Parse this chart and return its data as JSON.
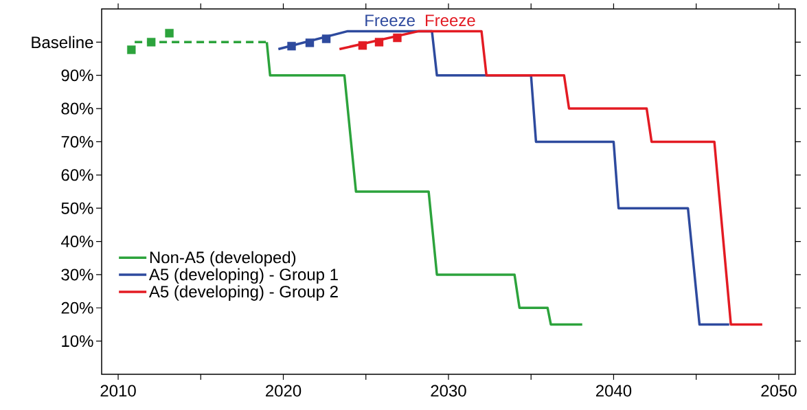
{
  "chart_data": {
    "type": "line",
    "xlim": [
      2009,
      2051
    ],
    "ylim": [
      0,
      110
    ],
    "xticks": [
      2010,
      {
        "value": 2015,
        "label": null
      },
      2020,
      {
        "value": 2025,
        "label": null
      },
      2030,
      {
        "value": 2035,
        "label": null
      },
      2040,
      {
        "value": 2045,
        "label": null
      },
      2050
    ],
    "yticks": [
      {
        "value": 10,
        "label": "10%"
      },
      {
        "value": 20,
        "label": "20%"
      },
      {
        "value": 30,
        "label": "30%"
      },
      {
        "value": 40,
        "label": "40%"
      },
      {
        "value": 50,
        "label": "50%"
      },
      {
        "value": 60,
        "label": "60%"
      },
      {
        "value": 70,
        "label": "70%"
      },
      {
        "value": 80,
        "label": "80%"
      },
      {
        "value": 90,
        "label": "90%"
      },
      {
        "value": 100,
        "label": "Baseline"
      }
    ],
    "grid": false,
    "legend": "bottom left",
    "line_style": "solid",
    "marker": "none",
    "series": [
      {
        "name": "Non-A5 (developed)",
        "color": "#2ca33c",
        "x": [
          2019,
          2019.2,
          2023.7,
          2024.4,
          2028.8,
          2029.3,
          2034,
          2034.3,
          2036,
          2036.2,
          2038.1
        ],
        "values": [
          100,
          90,
          90,
          55,
          55,
          30,
          30,
          20,
          20,
          15,
          15
        ]
      },
      {
        "name": "A5 (developing) - Group 1",
        "color": "#2e4a9e",
        "x": [
          2019.7,
          2023.9,
          2029,
          2029.3,
          2035,
          2035.3,
          2040,
          2040.3,
          2044.5,
          2045.2,
          2047
        ],
        "values": [
          97.9,
          103.3,
          103.3,
          90,
          90,
          70,
          70,
          50,
          50,
          15,
          15
        ]
      },
      {
        "name": "A5 (developing) - Group 2",
        "color": "#e31b23",
        "x": [
          2023.4,
          2028.2,
          2032,
          2032.3,
          2037,
          2037.3,
          2042,
          2042.3,
          2046.1,
          2047.1,
          2049
        ],
        "values": [
          97.9,
          103.3,
          103.3,
          90,
          90,
          80,
          80,
          70,
          70,
          15,
          15
        ]
      },
      {
        "color": "#2ca33c",
        "line_style": "dashed",
        "x": [
          2011,
          2019
        ],
        "values": [
          100,
          100
        ]
      },
      {
        "type": "scatter",
        "marker": "square",
        "color": "#2ca33c",
        "x": [
          2010.8,
          2012,
          2013.1
        ],
        "values": [
          97.7,
          100,
          102.7
        ]
      },
      {
        "type": "scatter",
        "marker": "square",
        "color": "#2e4a9e",
        "x": [
          2020.5,
          2021.6,
          2022.6
        ],
        "values": [
          98.8,
          99.8,
          101
        ]
      },
      {
        "type": "scatter",
        "marker": "square",
        "color": "#e31b23",
        "x": [
          2024.8,
          2025.8,
          2026.9
        ],
        "values": [
          99,
          100,
          101.3
        ]
      }
    ],
    "annotations": [
      "Freeze",
      "Freeze"
    ]
  }
}
